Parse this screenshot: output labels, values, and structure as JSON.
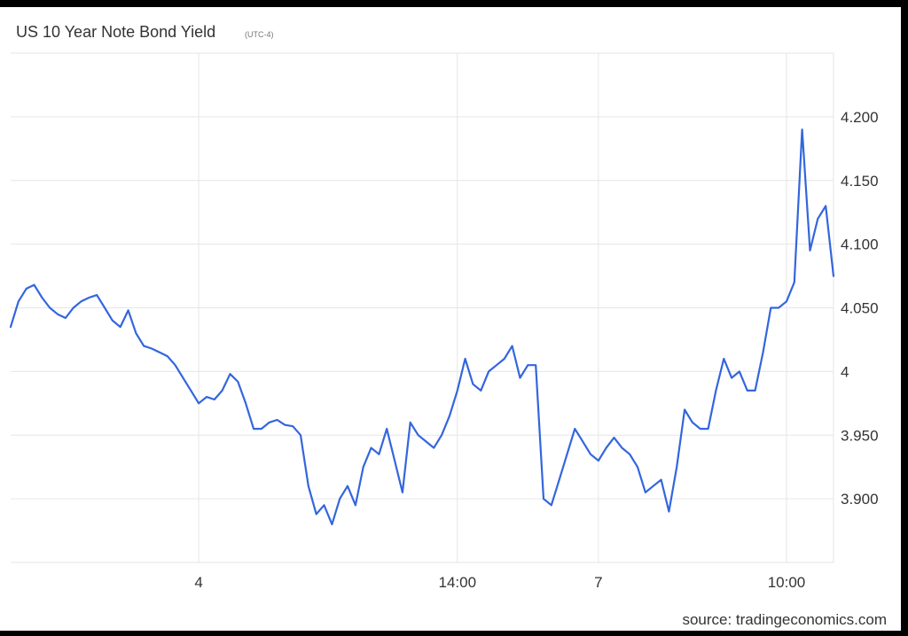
{
  "chart_data": {
    "type": "line",
    "title": "US 10 Year Note Bond Yield",
    "subtitle": "(UTC-4)",
    "source": "source: tradingeconomics.com",
    "xlabel": "",
    "ylabel": "",
    "ylim": [
      3.85,
      4.25
    ],
    "grid": true,
    "y_ticks": [
      {
        "value": 3.9,
        "label": "3.900"
      },
      {
        "value": 3.95,
        "label": "3.950"
      },
      {
        "value": 4.0,
        "label": "4"
      },
      {
        "value": 4.05,
        "label": "4.050"
      },
      {
        "value": 4.1,
        "label": "4.100"
      },
      {
        "value": 4.15,
        "label": "4.150"
      },
      {
        "value": 4.2,
        "label": "4.200"
      }
    ],
    "x_ticks": [
      {
        "index": 24,
        "label": "4"
      },
      {
        "index": 57,
        "label": "14:00"
      },
      {
        "index": 75,
        "label": "7"
      },
      {
        "index": 99,
        "label": "10:00"
      }
    ],
    "series": [
      {
        "color": "#3366dd",
        "values": [
          4.035,
          4.055,
          4.065,
          4.068,
          4.058,
          4.05,
          4.045,
          4.042,
          4.05,
          4.055,
          4.058,
          4.06,
          4.05,
          4.04,
          4.035,
          4.048,
          4.03,
          4.02,
          4.018,
          4.015,
          4.012,
          4.005,
          3.995,
          3.985,
          3.975,
          3.98,
          3.978,
          3.985,
          3.998,
          3.992,
          3.975,
          3.955,
          3.955,
          3.96,
          3.962,
          3.958,
          3.957,
          3.95,
          3.91,
          3.888,
          3.895,
          3.88,
          3.9,
          3.91,
          3.895,
          3.925,
          3.94,
          3.935,
          3.955,
          3.93,
          3.905,
          3.96,
          3.95,
          3.945,
          3.94,
          3.95,
          3.965,
          3.985,
          4.01,
          3.99,
          3.985,
          4.0,
          4.005,
          4.01,
          4.02,
          3.995,
          4.005,
          4.005,
          3.9,
          3.895,
          3.915,
          3.935,
          3.955,
          3.945,
          3.935,
          3.93,
          3.94,
          3.948,
          3.94,
          3.935,
          3.925,
          3.905,
          3.91,
          3.915,
          3.89,
          3.925,
          3.97,
          3.96,
          3.955,
          3.955,
          3.985,
          4.01,
          3.995,
          4.0,
          3.985,
          3.985,
          4.015,
          4.05,
          4.05,
          4.055,
          4.07,
          4.19,
          4.095,
          4.12,
          4.13,
          4.075
        ]
      }
    ]
  }
}
